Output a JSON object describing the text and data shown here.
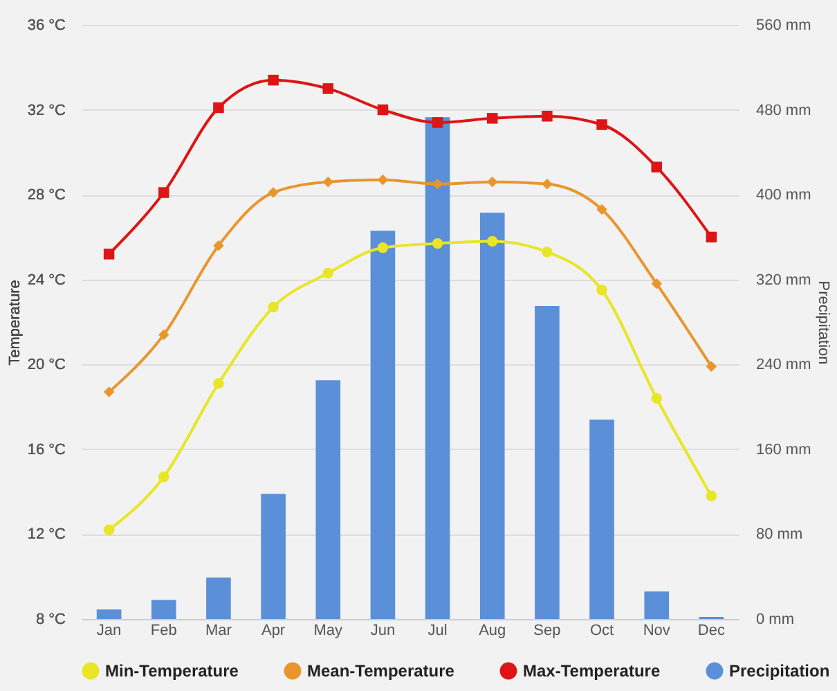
{
  "chart_data": {
    "type": "line",
    "ylabel": "Temperature",
    "y2label": "Precipitation",
    "categories": [
      "Jan",
      "Feb",
      "Mar",
      "Apr",
      "May",
      "Jun",
      "Jul",
      "Aug",
      "Sep",
      "Oct",
      "Nov",
      "Dec"
    ],
    "series": [
      {
        "name": "Min-Temperature",
        "color": "#e8e626",
        "marker": "circle",
        "values": [
          12.2,
          14.7,
          19.1,
          22.7,
          24.3,
          25.5,
          25.7,
          25.8,
          25.3,
          23.5,
          18.4,
          13.8
        ]
      },
      {
        "name": "Mean-Temperature",
        "color": "#e8962c",
        "marker": "diamond",
        "values": [
          18.7,
          21.4,
          25.6,
          28.1,
          28.6,
          28.7,
          28.5,
          28.6,
          28.5,
          27.3,
          23.8,
          19.9
        ]
      },
      {
        "name": "Max-Temperature",
        "color": "#dd1515",
        "marker": "square",
        "values": [
          25.2,
          28.1,
          32.1,
          33.4,
          33.0,
          32.0,
          31.4,
          31.6,
          31.7,
          31.3,
          29.3,
          26.0
        ]
      },
      {
        "name": "Precipitation",
        "type": "bar",
        "axis": "y2",
        "color": "#5b8fd8",
        "values": [
          9,
          18,
          39,
          118,
          225,
          366,
          473,
          383,
          295,
          188,
          26,
          2
        ]
      }
    ],
    "ylim": [
      8,
      36
    ],
    "yticks": [
      {
        "value": 8,
        "label": "8 °C"
      },
      {
        "value": 12,
        "label": "12 °C"
      },
      {
        "value": 16,
        "label": "16 °C"
      },
      {
        "value": 20,
        "label": "20 °C"
      },
      {
        "value": 24,
        "label": "24 °C"
      },
      {
        "value": 28,
        "label": "28 °C"
      },
      {
        "value": 32,
        "label": "32 °C"
      },
      {
        "value": 36,
        "label": "36 °C"
      }
    ],
    "y2lim": [
      0,
      560
    ],
    "y2ticks": [
      {
        "value": 0,
        "label": "0 mm"
      },
      {
        "value": 80,
        "label": "80 mm"
      },
      {
        "value": 160,
        "label": "160 mm"
      },
      {
        "value": 240,
        "label": "240 mm"
      },
      {
        "value": 320,
        "label": "320 mm"
      },
      {
        "value": 400,
        "label": "400 mm"
      },
      {
        "value": 480,
        "label": "480 mm"
      },
      {
        "value": 560,
        "label": "560 mm"
      }
    ],
    "grid": "y",
    "legend": "bottom"
  }
}
